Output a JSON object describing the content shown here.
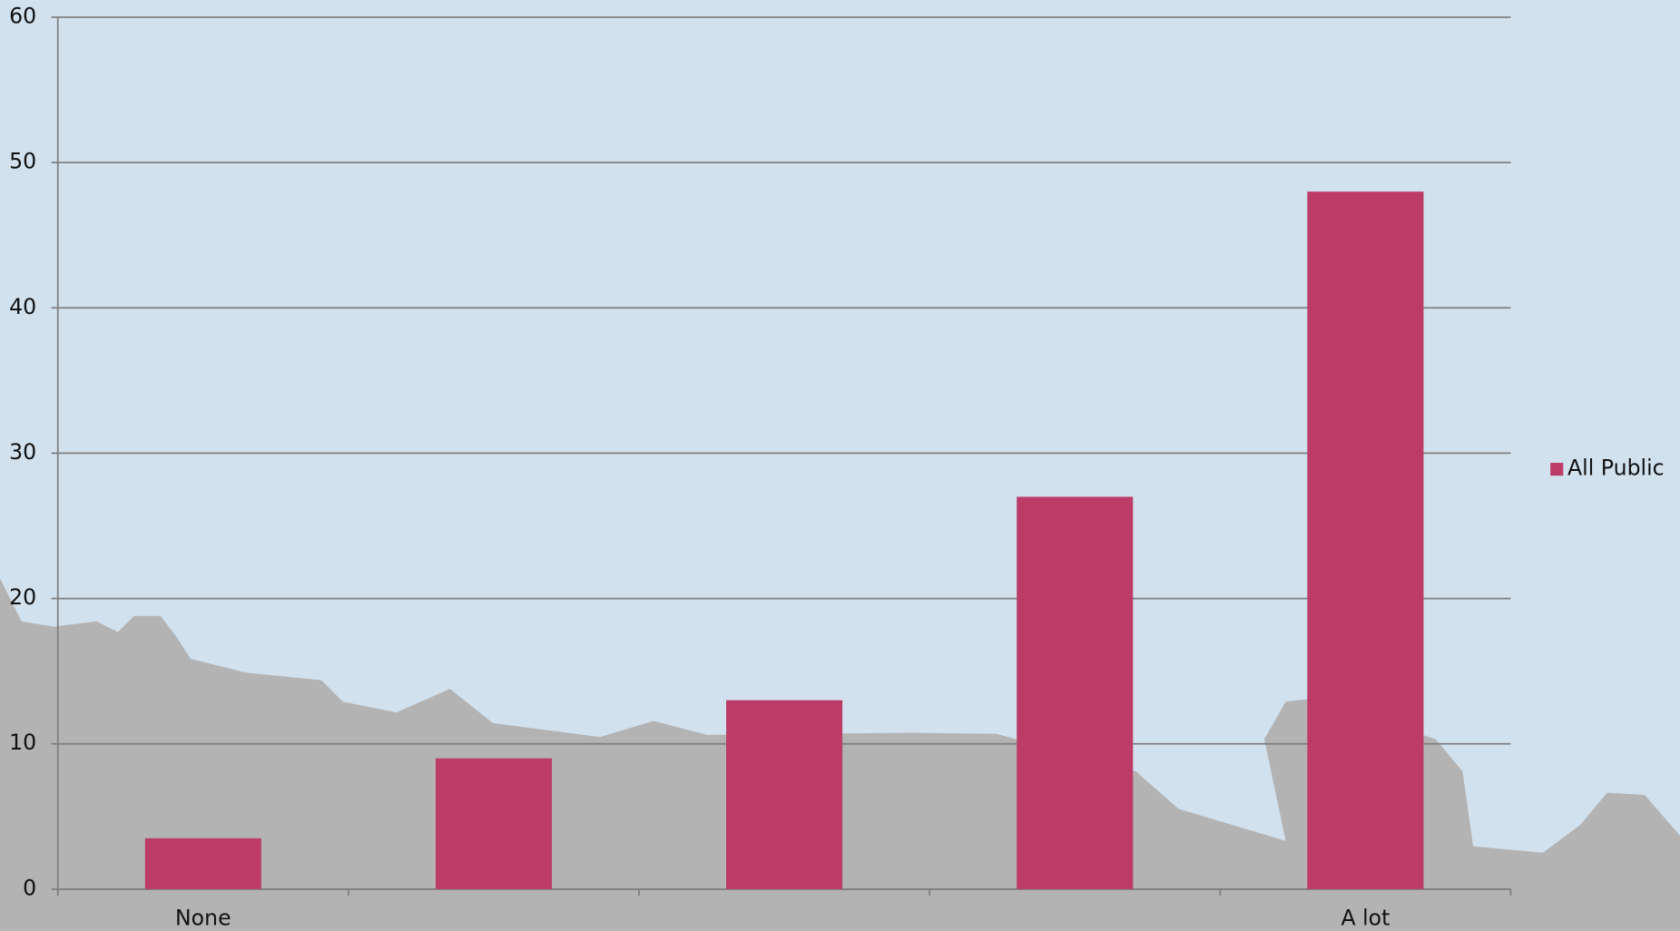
{
  "chart_data": {
    "type": "bar",
    "categories": [
      "None",
      null,
      null,
      null,
      "A lot"
    ],
    "series": [
      {
        "name": "All Public",
        "color": "#bc3c67",
        "values": [
          3.5,
          9,
          13,
          27,
          48
        ]
      }
    ],
    "ylim": [
      0,
      60
    ],
    "yticks": [
      0,
      10,
      20,
      30,
      40,
      50,
      60
    ],
    "grid": true,
    "legend": "right"
  }
}
